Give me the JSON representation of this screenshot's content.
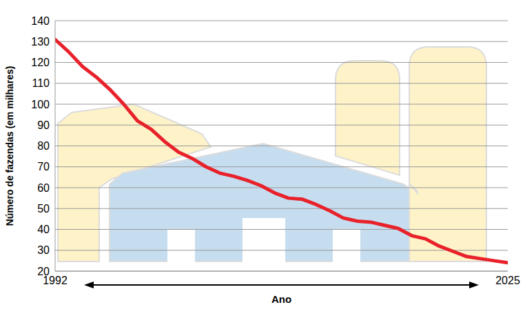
{
  "chart_data": {
    "type": "line",
    "xlabel": "Ano",
    "ylabel": "Número de fazendas (em milhares)",
    "x": [
      1992,
      1993,
      1994,
      1995,
      1996,
      1997,
      1998,
      1999,
      2000,
      2001,
      2002,
      2003,
      2004,
      2005,
      2006,
      2007,
      2008,
      2009,
      2010,
      2011,
      2012,
      2013,
      2014,
      2015,
      2016,
      2017,
      2018,
      2019,
      2020,
      2021,
      2022,
      2023,
      2024,
      2025
    ],
    "values": [
      131,
      125,
      118,
      113,
      107,
      100,
      92,
      88,
      82,
      77,
      74,
      70,
      67,
      65.5,
      63.5,
      61,
      57.5,
      55,
      54.5,
      52,
      49,
      45.5,
      44,
      43.5,
      42,
      40.5,
      37,
      35.5,
      32,
      29.5,
      27,
      26,
      25,
      24
    ],
    "color": "#e8212a",
    "xlim": [
      1992,
      2025
    ],
    "ylim": [
      20,
      140
    ],
    "xticks": [
      1992,
      2025
    ],
    "yticks": [
      20,
      30,
      40,
      50,
      60,
      70,
      80,
      90,
      100,
      110,
      120,
      130,
      140
    ],
    "grid": true
  }
}
